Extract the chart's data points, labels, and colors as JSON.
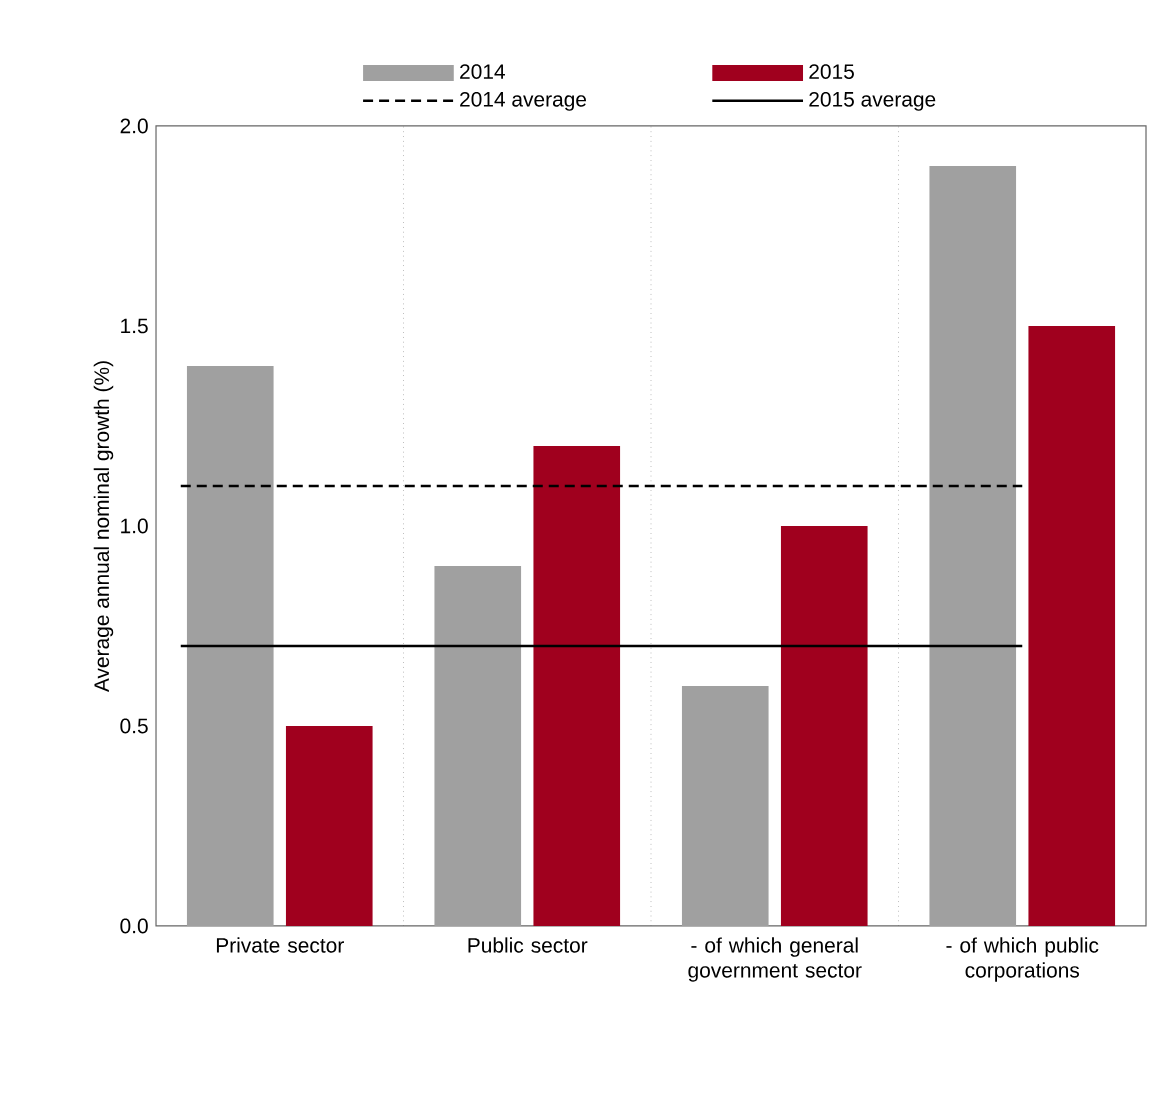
{
  "chart_data": {
    "type": "bar",
    "ylabel": "Average annual nominal growth (%)",
    "categories": [
      "Private sector",
      "Public sector",
      "- of which general government sector",
      "- of which public corporations"
    ],
    "series": [
      {
        "name": "2014",
        "color": "#a0a0a0",
        "values": [
          1.4,
          0.9,
          0.6,
          1.9
        ]
      },
      {
        "name": "2015",
        "color": "#a0001e",
        "values": [
          0.5,
          1.2,
          1.0,
          1.5
        ]
      }
    ],
    "ylim": [
      0,
      2
    ],
    "yticks": [
      {
        "value": 0,
        "label": "0.0"
      },
      {
        "value": 0.5,
        "label": "0.5"
      },
      {
        "value": 1,
        "label": "1.0"
      },
      {
        "value": 1.5,
        "label": "1.5"
      },
      {
        "value": 2,
        "label": "2.0"
      }
    ],
    "ref_lines": [
      {
        "axis": "y",
        "value": 1.1,
        "label": "2014 average",
        "color": "#000000",
        "line_style": "dashed"
      },
      {
        "axis": "y",
        "value": 0.7,
        "label": "2015 average",
        "color": "#000000",
        "line_style": "solid"
      }
    ],
    "grid": "x",
    "legend": "top"
  }
}
